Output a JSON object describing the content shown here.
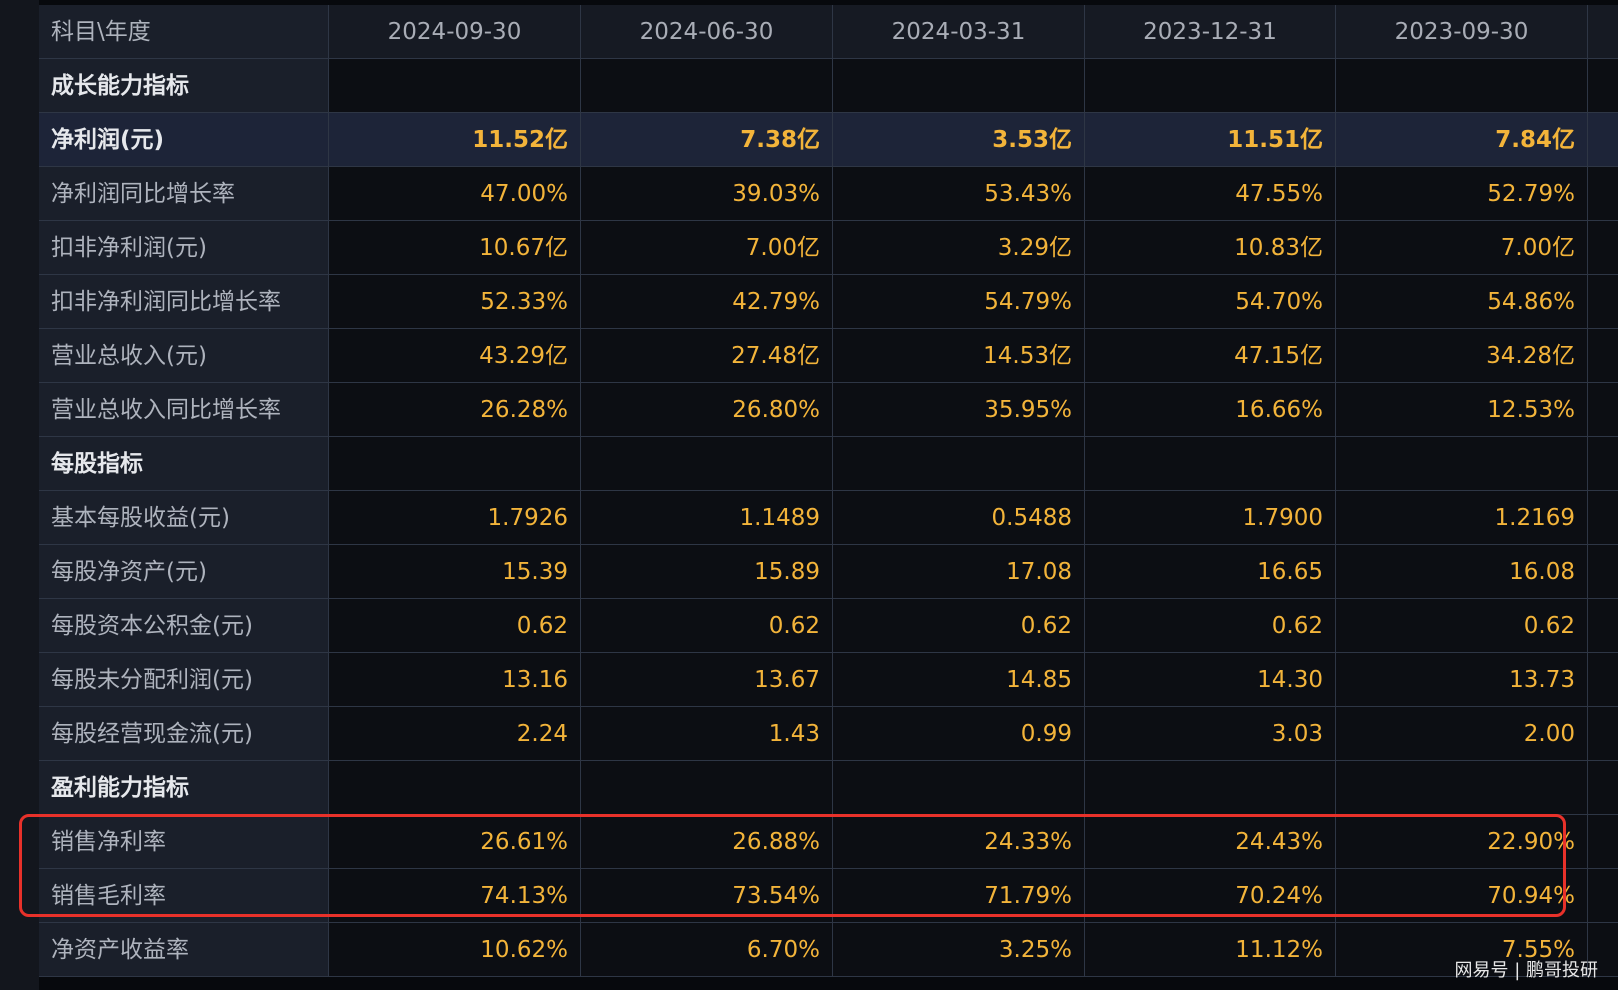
{
  "table": {
    "header": [
      "科目\\年度",
      "2024-09-30",
      "2024-06-30",
      "2024-03-31",
      "2023-12-31",
      "2023-09-30"
    ],
    "rows": [
      [
        "成长能力指标"
      ],
      [
        "净利润(元)",
        "11.52亿",
        "7.38亿",
        "3.53亿",
        "11.51亿",
        "7.84亿"
      ],
      [
        "净利润同比增长率",
        "47.00%",
        "39.03%",
        "53.43%",
        "47.55%",
        "52.79%"
      ],
      [
        "扣非净利润(元)",
        "10.67亿",
        "7.00亿",
        "3.29亿",
        "10.83亿",
        "7.00亿"
      ],
      [
        "扣非净利润同比增长率",
        "52.33%",
        "42.79%",
        "54.79%",
        "54.70%",
        "54.86%"
      ],
      [
        "营业总收入(元)",
        "43.29亿",
        "27.48亿",
        "14.53亿",
        "47.15亿",
        "34.28亿"
      ],
      [
        "营业总收入同比增长率",
        "26.28%",
        "26.80%",
        "35.95%",
        "16.66%",
        "12.53%"
      ],
      [
        "每股指标"
      ],
      [
        "基本每股收益(元)",
        "1.7926",
        "1.1489",
        "0.5488",
        "1.7900",
        "1.2169"
      ],
      [
        "每股净资产(元)",
        "15.39",
        "15.89",
        "17.08",
        "16.65",
        "16.08"
      ],
      [
        "每股资本公积金(元)",
        "0.62",
        "0.62",
        "0.62",
        "0.62",
        "0.62"
      ],
      [
        "每股未分配利润(元)",
        "13.16",
        "13.67",
        "14.85",
        "14.30",
        "13.73"
      ],
      [
        "每股经营现金流(元)",
        "2.24",
        "1.43",
        "0.99",
        "3.03",
        "2.00"
      ],
      [
        "盈利能力指标"
      ],
      [
        "销售净利率",
        "26.61%",
        "26.88%",
        "24.33%",
        "24.43%",
        "22.90%"
      ],
      [
        "销售毛利率",
        "74.13%",
        "73.54%",
        "71.79%",
        "70.24%",
        "70.94%"
      ],
      [
        "净资产收益率",
        "10.62%",
        "6.70%",
        "3.25%",
        "11.12%",
        "7.55%"
      ]
    ]
  },
  "watermark": "网易号 | 鹏哥投研"
}
